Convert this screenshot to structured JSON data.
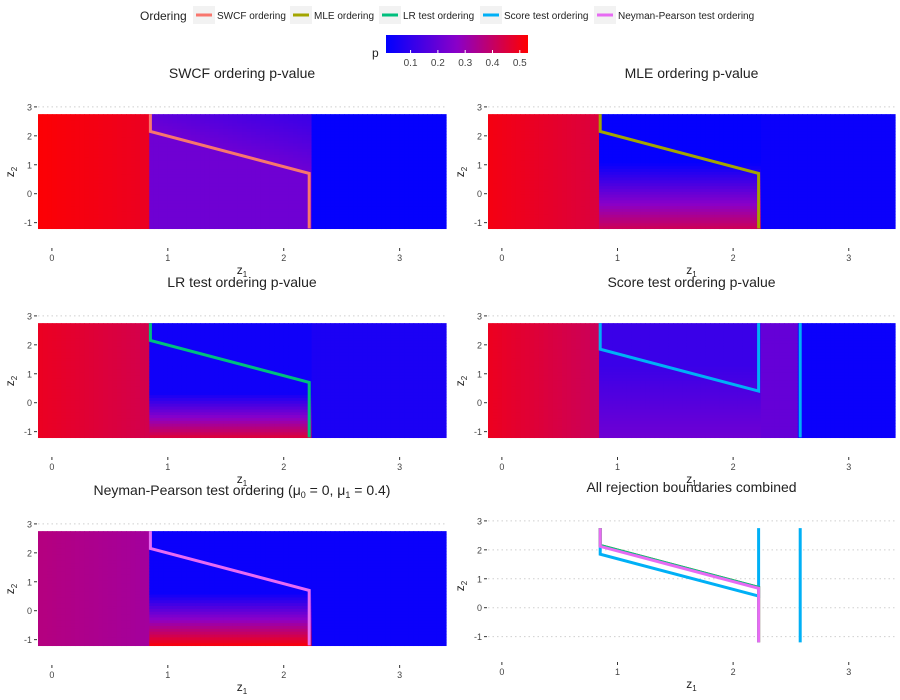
{
  "legend": {
    "ordering_title": "Ordering",
    "items": [
      {
        "label": "SWCF ordering",
        "color": "#F8766D"
      },
      {
        "label": "MLE ordering",
        "color": "#A3A500"
      },
      {
        "label": "LR test ordering",
        "color": "#00BF7D"
      },
      {
        "label": "Score test ordering",
        "color": "#00B0F6"
      },
      {
        "label": "Neyman-Pearson test ordering",
        "color": "#E76BF3"
      }
    ],
    "colorbar_title": "p",
    "colorbar_ticks": [
      "0.1",
      "0.2",
      "0.3",
      "0.4",
      "0.5"
    ],
    "colorbar_range": [
      0.01,
      0.53
    ],
    "colorbar_low_color": "#0000ff",
    "colorbar_high_color": "#ff0000"
  },
  "chart_data": [
    {
      "type": "heatmap",
      "title": "SWCF ordering p-value",
      "xlabel_base": "z",
      "xlabel_sub": "1",
      "ylabel_base": "z",
      "ylabel_sub": "2",
      "xlim": [
        -0.12,
        3.4
      ],
      "ylim": [
        -1.6,
        3.1
      ],
      "x_ticks": [
        0,
        1,
        2,
        3
      ],
      "y_ticks": [
        -1,
        0,
        1,
        2,
        3
      ],
      "grid": "horizontal-dotted",
      "field": "swcf",
      "boundaries": [
        {
          "series": "SWCF ordering",
          "color": "#F8766D",
          "points": [
            [
              0.85,
              2.75
            ],
            [
              0.85,
              2.15
            ],
            [
              2.22,
              0.7
            ],
            [
              2.22,
              -1.2
            ]
          ]
        }
      ]
    },
    {
      "type": "heatmap",
      "title": "MLE ordering p-value",
      "xlabel_base": "z",
      "xlabel_sub": "1",
      "ylabel_base": "z",
      "ylabel_sub": "2",
      "xlim": [
        -0.12,
        3.4
      ],
      "ylim": [
        -1.6,
        3.1
      ],
      "x_ticks": [
        0,
        1,
        2,
        3
      ],
      "y_ticks": [
        -1,
        0,
        1,
        2,
        3
      ],
      "grid": "horizontal-dotted",
      "field": "mle",
      "boundaries": [
        {
          "series": "MLE ordering",
          "color": "#A3A500",
          "points": [
            [
              0.85,
              2.75
            ],
            [
              0.85,
              2.15
            ],
            [
              2.22,
              0.7
            ],
            [
              2.22,
              -1.2
            ]
          ]
        }
      ]
    },
    {
      "type": "heatmap",
      "title": "LR test ordering p-value",
      "xlabel_base": "z",
      "xlabel_sub": "1",
      "ylabel_base": "z",
      "ylabel_sub": "2",
      "xlim": [
        -0.12,
        3.4
      ],
      "ylim": [
        -1.6,
        3.1
      ],
      "x_ticks": [
        0,
        1,
        2,
        3
      ],
      "y_ticks": [
        -1,
        0,
        1,
        2,
        3
      ],
      "grid": "horizontal-dotted",
      "field": "lr",
      "boundaries": [
        {
          "series": "LR test ordering",
          "color": "#00BF7D",
          "points": [
            [
              0.85,
              2.75
            ],
            [
              0.85,
              2.15
            ],
            [
              2.22,
              0.7
            ],
            [
              2.22,
              -1.2
            ]
          ]
        }
      ]
    },
    {
      "type": "heatmap",
      "title": "Score test ordering p-value",
      "xlabel_base": "z",
      "xlabel_sub": "1",
      "ylabel_base": "z",
      "ylabel_sub": "2",
      "xlim": [
        -0.12,
        3.4
      ],
      "ylim": [
        -1.6,
        3.1
      ],
      "x_ticks": [
        0,
        1,
        2,
        3
      ],
      "y_ticks": [
        -1,
        0,
        1,
        2,
        3
      ],
      "grid": "horizontal-dotted",
      "field": "score",
      "boundaries": [
        {
          "series": "Score test ordering",
          "color": "#00B0F6",
          "points": [
            [
              0.85,
              2.75
            ],
            [
              0.85,
              1.85
            ],
            [
              2.22,
              0.4
            ],
            [
              2.22,
              2.75
            ]
          ]
        },
        {
          "series": "Score test ordering",
          "color": "#00B0F6",
          "points": [
            [
              2.58,
              2.75
            ],
            [
              2.58,
              -1.2
            ]
          ]
        }
      ]
    },
    {
      "type": "heatmap",
      "title": "Neyman-Pearson test ordering (μ",
      "title_sub0": "0",
      "title_mid": " = 0, μ",
      "title_sub1": "1",
      "title_end": " = 0.4)",
      "xlabel_base": "z",
      "xlabel_sub": "1",
      "ylabel_base": "z",
      "ylabel_sub": "2",
      "xlim": [
        -0.12,
        3.4
      ],
      "ylim": [
        -1.6,
        3.1
      ],
      "x_ticks": [
        0,
        1,
        2,
        3
      ],
      "y_ticks": [
        -1,
        0,
        1,
        2,
        3
      ],
      "grid": "horizontal-dotted",
      "field": "np",
      "boundaries": [
        {
          "series": "Neyman-Pearson test ordering",
          "color": "#E76BF3",
          "points": [
            [
              0.85,
              2.75
            ],
            [
              0.85,
              2.15
            ],
            [
              2.22,
              0.7
            ],
            [
              2.22,
              -1.2
            ]
          ]
        }
      ]
    },
    {
      "type": "line",
      "title": "All rejection boundaries combined",
      "xlabel_base": "z",
      "xlabel_sub": "1",
      "ylabel_base": "z",
      "ylabel_sub": "2",
      "xlim": [
        -0.12,
        3.4
      ],
      "ylim": [
        -1.6,
        3.1
      ],
      "x_ticks": [
        0,
        1,
        2,
        3
      ],
      "y_ticks": [
        -1,
        0,
        1,
        2,
        3
      ],
      "grid": "horizontal-dotted",
      "field": "none",
      "boundaries": [
        {
          "series": "Score test ordering",
          "color": "#00B0F6",
          "points": [
            [
              0.85,
              2.75
            ],
            [
              0.85,
              1.85
            ],
            [
              2.22,
              0.4
            ],
            [
              2.22,
              2.75
            ]
          ]
        },
        {
          "series": "Score test ordering",
          "color": "#00B0F6",
          "points": [
            [
              2.58,
              2.75
            ],
            [
              2.58,
              -1.2
            ]
          ]
        },
        {
          "series": "SWCF ordering",
          "color": "#F8766D",
          "points": [
            [
              0.85,
              2.75
            ],
            [
              0.85,
              2.15
            ],
            [
              2.22,
              0.7
            ],
            [
              2.22,
              -1.2
            ]
          ]
        },
        {
          "series": "MLE ordering",
          "color": "#A3A500",
          "points": [
            [
              0.85,
              2.75
            ],
            [
              0.85,
              2.15
            ],
            [
              2.22,
              0.7
            ],
            [
              2.22,
              -1.2
            ]
          ]
        },
        {
          "series": "LR test ordering",
          "color": "#00BF7D",
          "points": [
            [
              0.85,
              2.75
            ],
            [
              0.85,
              2.15
            ],
            [
              2.22,
              0.7
            ],
            [
              2.22,
              -1.2
            ]
          ]
        },
        {
          "series": "Neyman-Pearson test ordering",
          "color": "#E76BF3",
          "points": [
            [
              0.85,
              2.75
            ],
            [
              0.85,
              2.12
            ],
            [
              2.22,
              0.67
            ],
            [
              2.22,
              -1.2
            ]
          ]
        }
      ]
    }
  ]
}
